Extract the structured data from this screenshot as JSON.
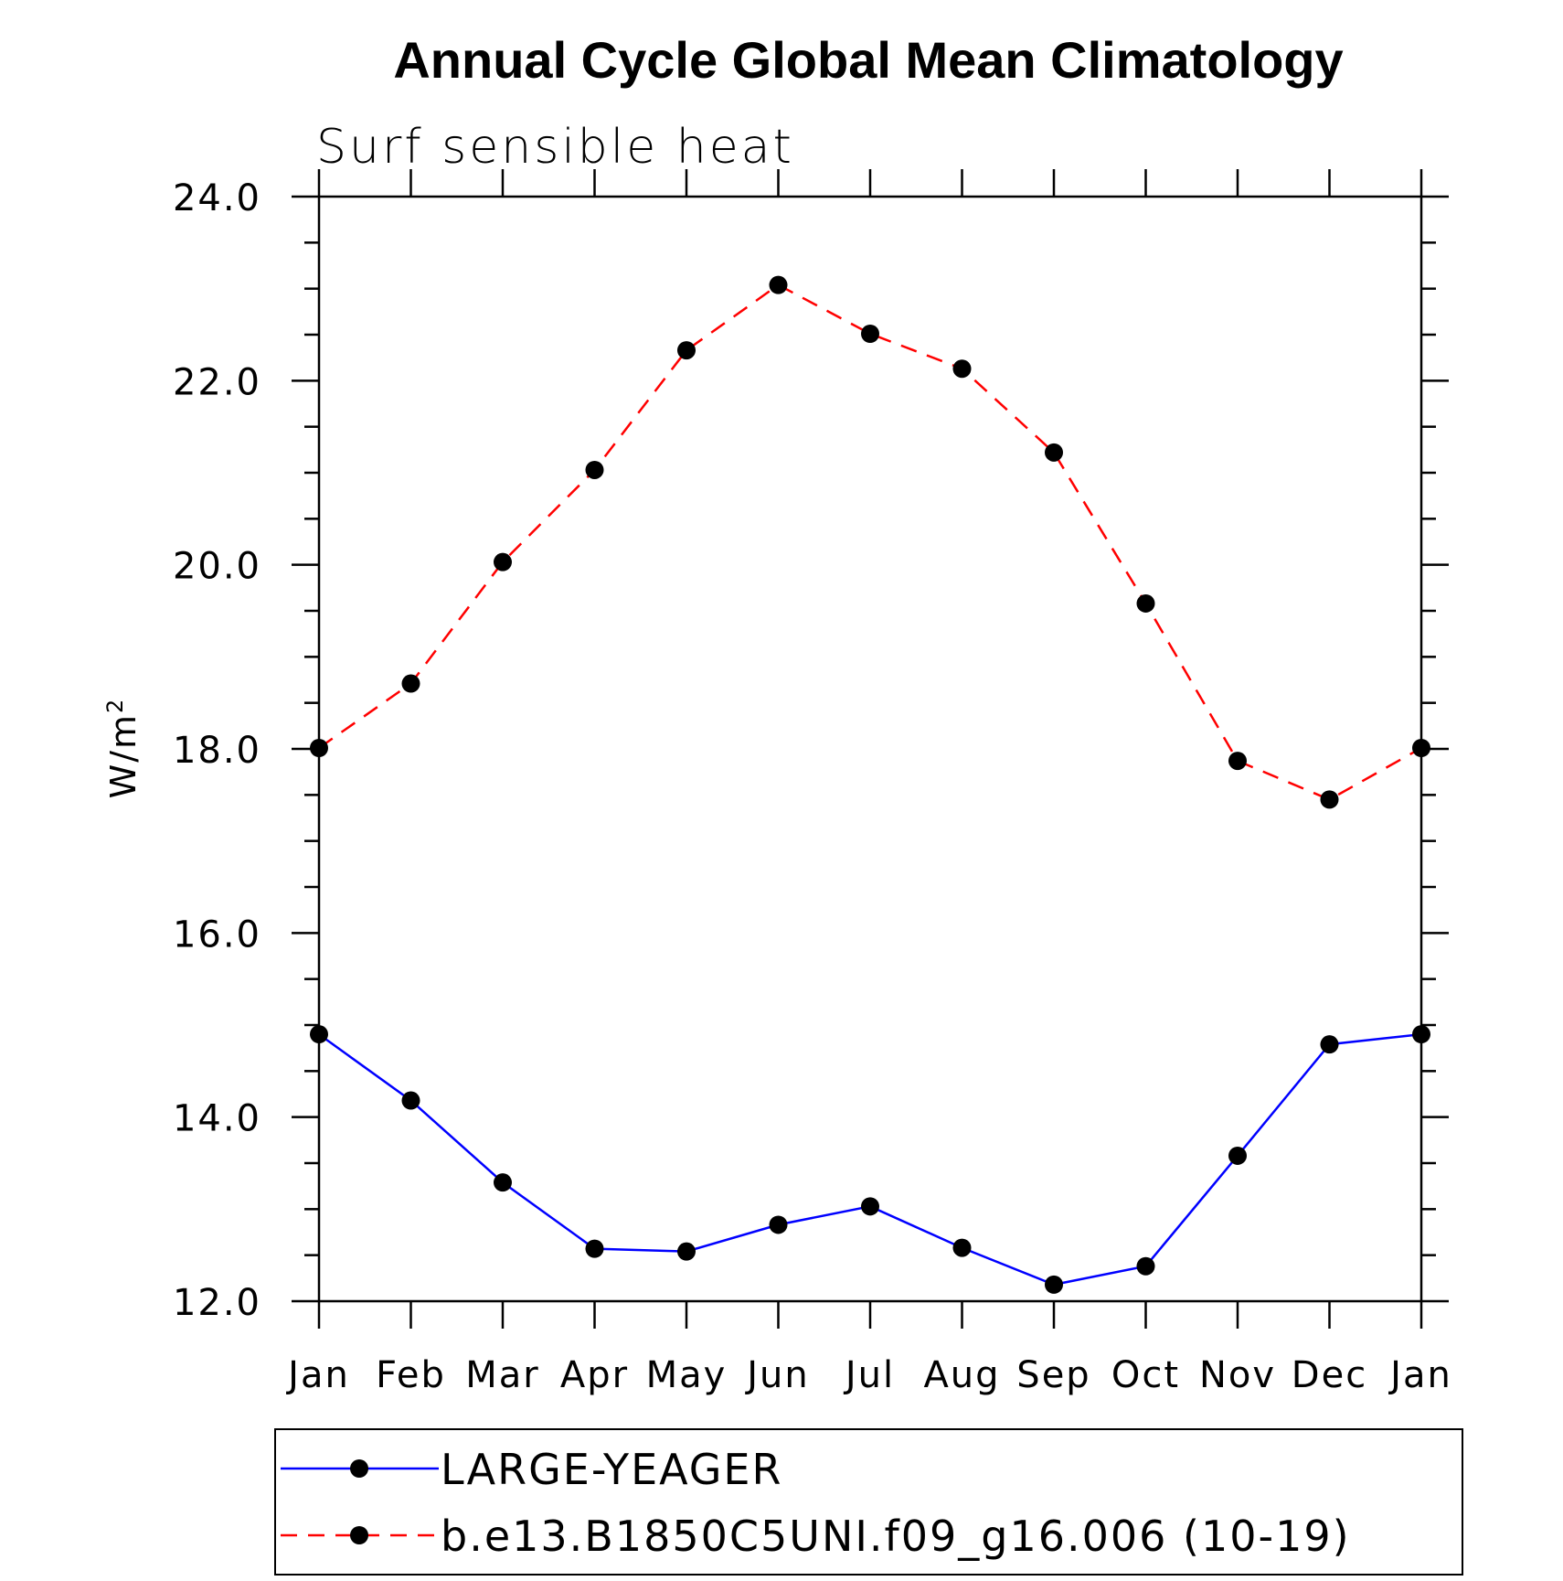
{
  "chart_data": {
    "type": "line",
    "title": "Annual Cycle Global Mean Climatology",
    "subtitle": "Surf sensible heat",
    "xlabel": "",
    "ylabel": "W/m",
    "ylabel_superscript": "2",
    "categories": [
      "Jan",
      "Feb",
      "Mar",
      "Apr",
      "May",
      "Jun",
      "Jul",
      "Aug",
      "Sep",
      "Oct",
      "Nov",
      "Dec",
      "Jan"
    ],
    "ylim": [
      12.0,
      24.0
    ],
    "yticks": [
      "12.0",
      "14.0",
      "16.0",
      "18.0",
      "20.0",
      "22.0",
      "24.0"
    ],
    "ytick_values": [
      12,
      14,
      16,
      18,
      20,
      22,
      24
    ],
    "yminor_step": 0.5,
    "grid": false,
    "legend_position": "bottom",
    "series": [
      {
        "name": "LARGE-YEAGER",
        "color": "#0000ff",
        "style": "solid",
        "marker": "circle",
        "values": [
          14.9,
          14.18,
          13.29,
          12.57,
          12.54,
          12.83,
          13.03,
          12.58,
          12.18,
          12.38,
          13.58,
          14.79,
          14.9
        ]
      },
      {
        "name": "b.e13.B1850C5UNI.f09_g16.006 (10-19)",
        "color": "#ff0000",
        "style": "dashed",
        "marker": "circle",
        "values": [
          18.01,
          18.71,
          20.03,
          21.03,
          22.33,
          23.04,
          22.51,
          22.13,
          21.22,
          19.58,
          17.87,
          17.45,
          18.01
        ]
      }
    ]
  }
}
